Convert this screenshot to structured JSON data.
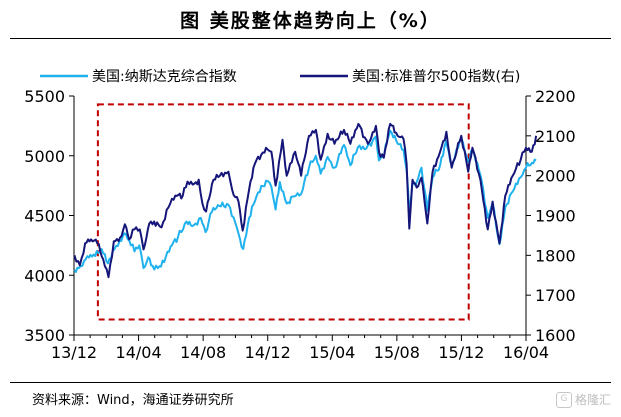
{
  "header": {
    "title": "图  美股整体趋势向上（%）"
  },
  "footer": {
    "source": "资料来源：Wind，海通证券研究所",
    "watermark": "格隆汇"
  },
  "chart_data": {
    "type": "line",
    "title": "图  美股整体趋势向上（%）",
    "x_ticks": [
      "13/12",
      "14/04",
      "14/08",
      "14/12",
      "15/04",
      "15/08",
      "15/12",
      "16/04"
    ],
    "x_range": [
      "2013-12",
      "2016-04"
    ],
    "y_left": {
      "label": "",
      "range": [
        3500,
        5500
      ],
      "ticks": [
        3500,
        4000,
        4500,
        5000,
        5500
      ]
    },
    "y_right": {
      "label": "",
      "range": [
        1600,
        2200
      ],
      "ticks": [
        1600,
        1700,
        1800,
        1900,
        2000,
        2100,
        2200
      ]
    },
    "legend_position": "top",
    "grid": false,
    "series": [
      {
        "name": "美国:纳斯达克综合指数",
        "axis": "left",
        "color": "#1fb2ee",
        "points": [
          [
            "2013-12-02",
            4045
          ],
          [
            "2013-12-10",
            4060
          ],
          [
            "2013-12-20",
            4120
          ],
          [
            "2014-01-01",
            4170
          ],
          [
            "2014-01-10",
            4160
          ],
          [
            "2014-01-22",
            4220
          ],
          [
            "2014-02-03",
            4100
          ],
          [
            "2014-02-12",
            4200
          ],
          [
            "2014-02-25",
            4290
          ],
          [
            "2014-03-06",
            4350
          ],
          [
            "2014-03-15",
            4290
          ],
          [
            "2014-03-25",
            4200
          ],
          [
            "2014-04-03",
            4250
          ],
          [
            "2014-04-11",
            4060
          ],
          [
            "2014-04-20",
            4150
          ],
          [
            "2014-04-28",
            4080
          ],
          [
            "2014-05-08",
            4060
          ],
          [
            "2014-05-20",
            4110
          ],
          [
            "2014-06-01",
            4240
          ],
          [
            "2014-06-15",
            4320
          ],
          [
            "2014-07-01",
            4450
          ],
          [
            "2014-07-15",
            4420
          ],
          [
            "2014-07-28",
            4480
          ],
          [
            "2014-08-06",
            4360
          ],
          [
            "2014-08-18",
            4530
          ],
          [
            "2014-09-01",
            4580
          ],
          [
            "2014-09-18",
            4590
          ],
          [
            "2014-10-01",
            4440
          ],
          [
            "2014-10-10",
            4300
          ],
          [
            "2014-10-16",
            4220
          ],
          [
            "2014-10-27",
            4480
          ],
          [
            "2014-11-10",
            4660
          ],
          [
            "2014-11-28",
            4790
          ],
          [
            "2014-12-08",
            4740
          ],
          [
            "2014-12-16",
            4550
          ],
          [
            "2014-12-24",
            4780
          ],
          [
            "2015-01-06",
            4600
          ],
          [
            "2015-01-20",
            4660
          ],
          [
            "2015-02-02",
            4680
          ],
          [
            "2015-02-17",
            4900
          ],
          [
            "2015-03-02",
            5000
          ],
          [
            "2015-03-11",
            4850
          ],
          [
            "2015-03-24",
            4990
          ],
          [
            "2015-04-06",
            4900
          ],
          [
            "2015-04-24",
            5090
          ],
          [
            "2015-05-06",
            4920
          ],
          [
            "2015-05-20",
            5070
          ],
          [
            "2015-06-05",
            5060
          ],
          [
            "2015-06-23",
            5160
          ],
          [
            "2015-06-29",
            4960
          ],
          [
            "2015-07-06",
            4990
          ],
          [
            "2015-07-20",
            5210
          ],
          [
            "2015-08-03",
            5100
          ],
          [
            "2015-08-14",
            5050
          ],
          [
            "2015-08-20",
            4880
          ],
          [
            "2015-08-25",
            4520
          ],
          [
            "2015-08-31",
            4780
          ],
          [
            "2015-09-08",
            4780
          ],
          [
            "2015-09-17",
            4900
          ],
          [
            "2015-09-28",
            4540
          ],
          [
            "2015-10-08",
            4820
          ],
          [
            "2015-10-22",
            4920
          ],
          [
            "2015-11-02",
            5120
          ],
          [
            "2015-11-13",
            4930
          ],
          [
            "2015-12-01",
            5150
          ],
          [
            "2015-12-14",
            4950
          ],
          [
            "2015-12-22",
            5050
          ],
          [
            "2016-01-06",
            4840
          ],
          [
            "2016-01-20",
            4480
          ],
          [
            "2016-01-29",
            4610
          ],
          [
            "2016-02-11",
            4260
          ],
          [
            "2016-02-22",
            4570
          ],
          [
            "2016-03-07",
            4700
          ],
          [
            "2016-03-22",
            4820
          ],
          [
            "2016-04-01",
            4900
          ],
          [
            "2016-04-12",
            4940
          ],
          [
            "2016-04-20",
            4960
          ]
        ]
      },
      {
        "name": "美国:标准普尔500指数(右)",
        "axis": "right",
        "color": "#15157a",
        "points": [
          [
            "2013-12-02",
            1800
          ],
          [
            "2013-12-12",
            1775
          ],
          [
            "2013-12-22",
            1830
          ],
          [
            "2014-01-02",
            1840
          ],
          [
            "2014-01-14",
            1830
          ],
          [
            "2014-01-25",
            1790
          ],
          [
            "2014-02-04",
            1745
          ],
          [
            "2014-02-14",
            1835
          ],
          [
            "2014-02-26",
            1845
          ],
          [
            "2014-03-07",
            1878
          ],
          [
            "2014-03-15",
            1840
          ],
          [
            "2014-03-25",
            1865
          ],
          [
            "2014-04-04",
            1865
          ],
          [
            "2014-04-11",
            1815
          ],
          [
            "2014-04-22",
            1880
          ],
          [
            "2014-05-01",
            1885
          ],
          [
            "2014-05-15",
            1870
          ],
          [
            "2014-05-28",
            1920
          ],
          [
            "2014-06-10",
            1950
          ],
          [
            "2014-06-24",
            1950
          ],
          [
            "2014-07-03",
            1985
          ],
          [
            "2014-07-16",
            1980
          ],
          [
            "2014-07-24",
            1990
          ],
          [
            "2014-07-31",
            1930
          ],
          [
            "2014-08-07",
            1910
          ],
          [
            "2014-08-21",
            1990
          ],
          [
            "2014-09-02",
            2000
          ],
          [
            "2014-09-18",
            2010
          ],
          [
            "2014-09-25",
            1965
          ],
          [
            "2014-10-07",
            1935
          ],
          [
            "2014-10-15",
            1862
          ],
          [
            "2014-10-27",
            1965
          ],
          [
            "2014-11-07",
            2030
          ],
          [
            "2014-11-28",
            2070
          ],
          [
            "2014-12-08",
            2060
          ],
          [
            "2014-12-16",
            1975
          ],
          [
            "2014-12-29",
            2090
          ],
          [
            "2015-01-06",
            2000
          ],
          [
            "2015-01-22",
            2060
          ],
          [
            "2015-02-02",
            2000
          ],
          [
            "2015-02-17",
            2100
          ],
          [
            "2015-03-02",
            2115
          ],
          [
            "2015-03-11",
            2040
          ],
          [
            "2015-03-24",
            2105
          ],
          [
            "2015-04-06",
            2080
          ],
          [
            "2015-04-24",
            2115
          ],
          [
            "2015-05-06",
            2080
          ],
          [
            "2015-05-21",
            2130
          ],
          [
            "2015-06-08",
            2080
          ],
          [
            "2015-06-23",
            2125
          ],
          [
            "2015-06-29",
            2060
          ],
          [
            "2015-07-08",
            2045
          ],
          [
            "2015-07-20",
            2130
          ],
          [
            "2015-08-03",
            2100
          ],
          [
            "2015-08-14",
            2092
          ],
          [
            "2015-08-20",
            2030
          ],
          [
            "2015-08-25",
            1867
          ],
          [
            "2015-08-31",
            1990
          ],
          [
            "2015-09-08",
            1970
          ],
          [
            "2015-09-17",
            1995
          ],
          [
            "2015-09-28",
            1880
          ],
          [
            "2015-10-08",
            2010
          ],
          [
            "2015-10-22",
            2060
          ],
          [
            "2015-11-03",
            2110
          ],
          [
            "2015-11-13",
            2020
          ],
          [
            "2015-12-01",
            2100
          ],
          [
            "2015-12-14",
            2010
          ],
          [
            "2015-12-22",
            2070
          ],
          [
            "2016-01-06",
            1990
          ],
          [
            "2016-01-20",
            1865
          ],
          [
            "2016-01-29",
            1935
          ],
          [
            "2016-02-11",
            1830
          ],
          [
            "2016-02-22",
            1950
          ],
          [
            "2016-03-07",
            2000
          ],
          [
            "2016-03-22",
            2040
          ],
          [
            "2016-04-01",
            2070
          ],
          [
            "2016-04-12",
            2060
          ],
          [
            "2016-04-20",
            2100
          ]
        ]
      }
    ],
    "annotations": [
      {
        "type": "dashed-rect",
        "color": "#c00000",
        "from": "2014-01-15",
        "to": "2015-12-15",
        "y_left_range": [
          3630,
          5430
        ]
      }
    ]
  }
}
